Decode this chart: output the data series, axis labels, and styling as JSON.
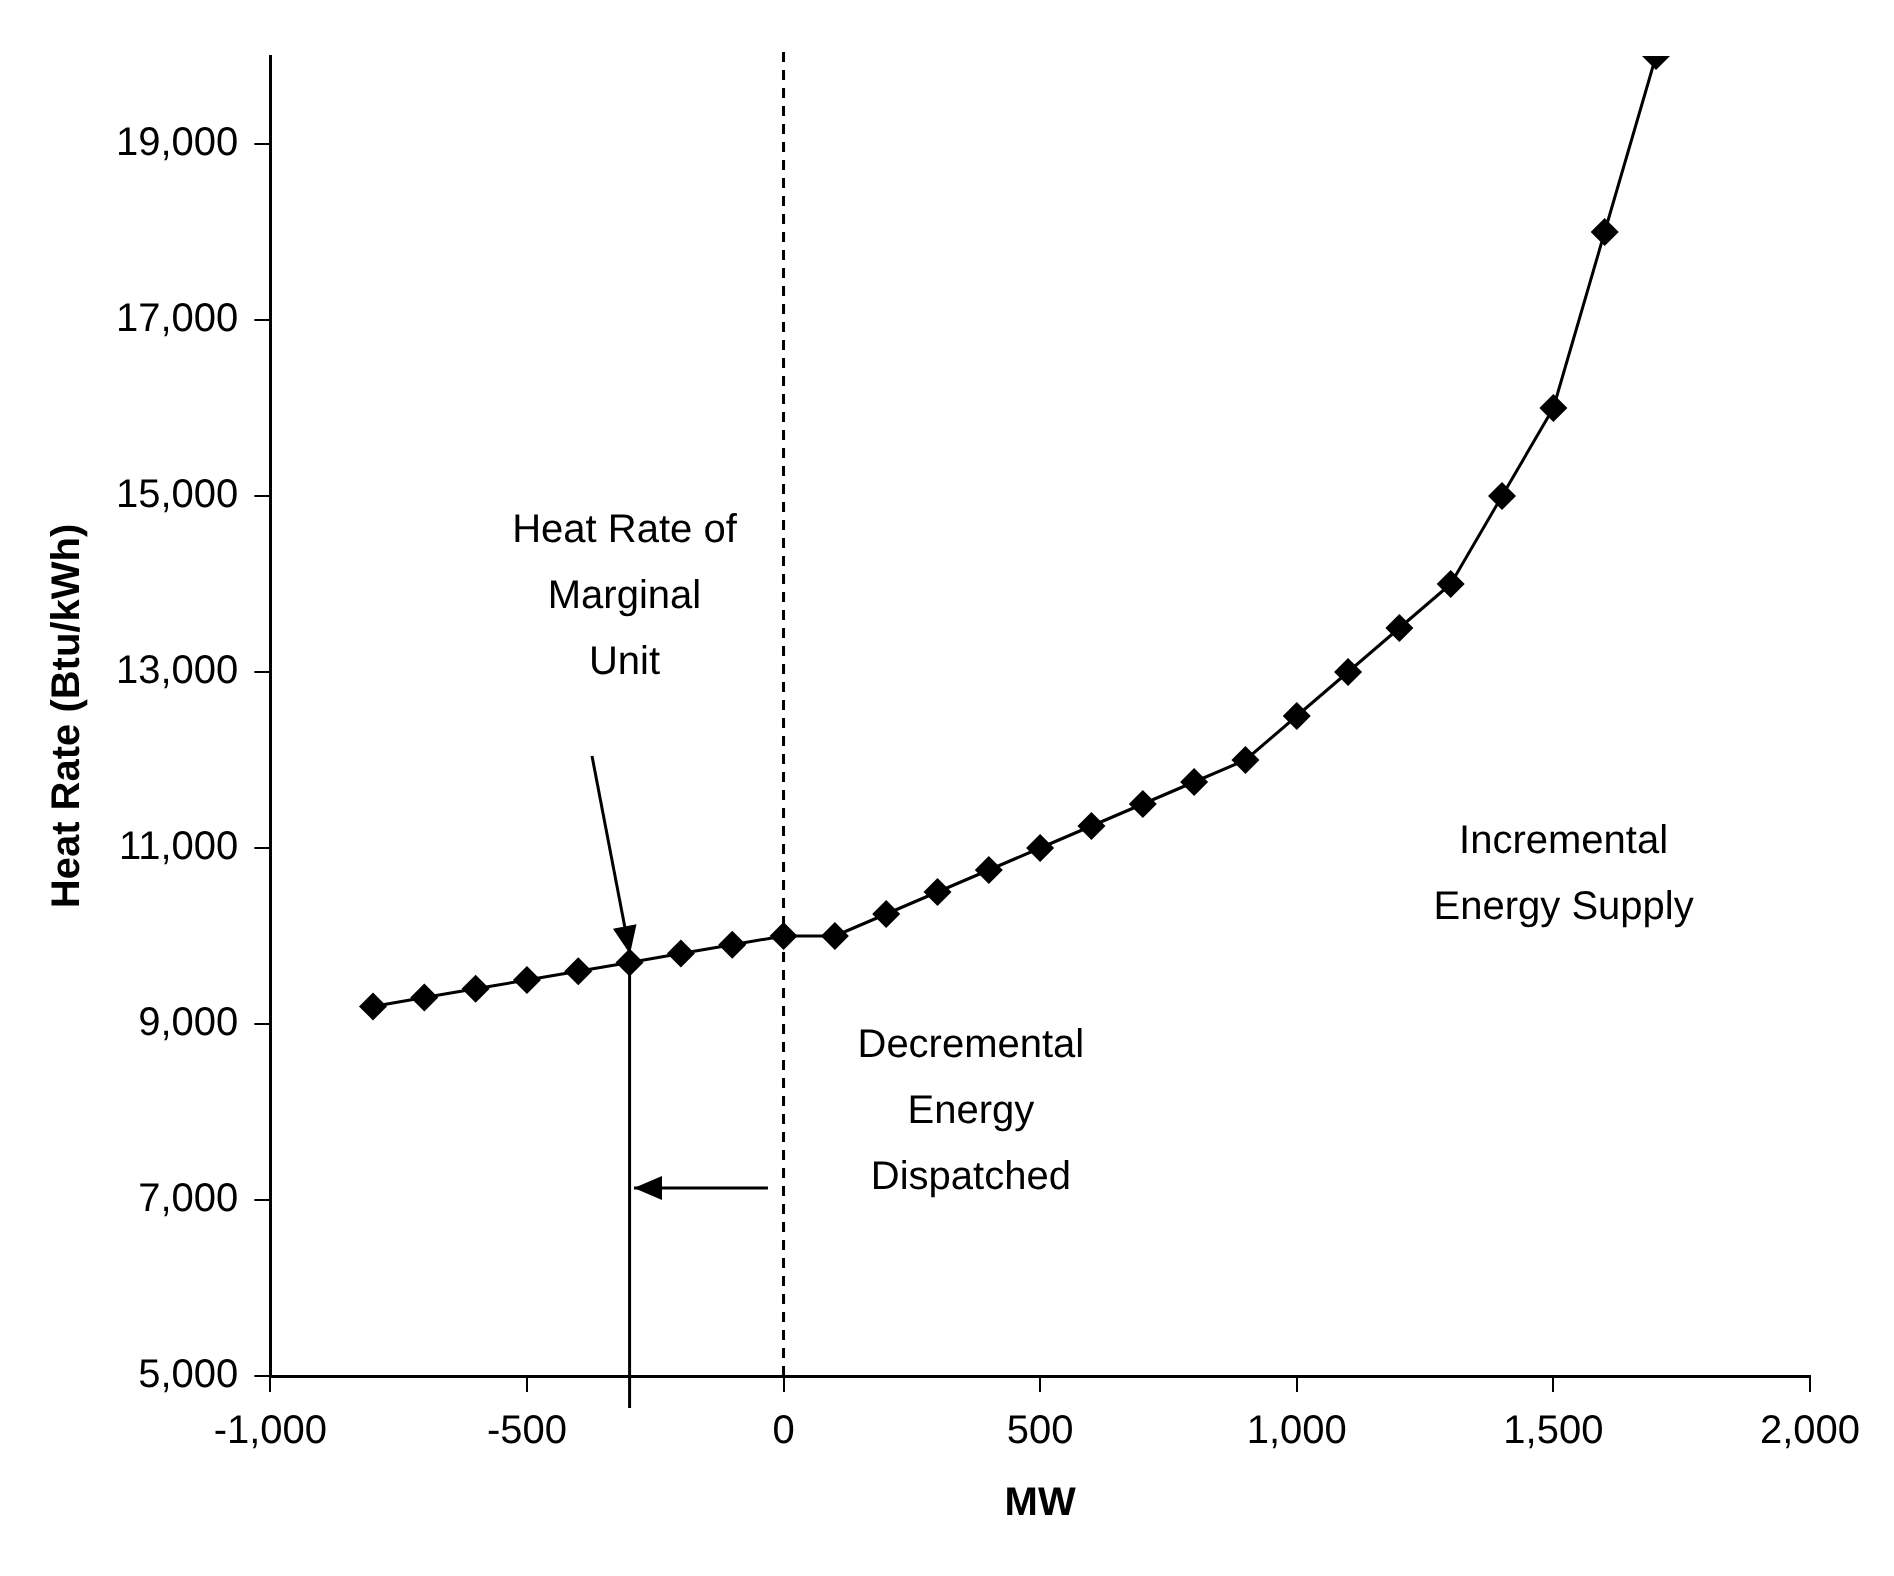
{
  "chart_data": {
    "type": "line",
    "xlabel": "MW",
    "ylabel": "Heat Rate (Btu/kWh)",
    "x": [
      -800,
      -700,
      -600,
      -500,
      -400,
      -300,
      -200,
      -100,
      0,
      100,
      200,
      300,
      400,
      500,
      600,
      700,
      800,
      900,
      1000,
      1100,
      1200,
      1300,
      1400,
      1500,
      1600,
      1700
    ],
    "series": [
      {
        "color": "#000000",
        "values": [
          9200,
          9300,
          9400,
          9500,
          9600,
          9700,
          9800,
          9900,
          10000,
          10000,
          10250,
          10500,
          10750,
          11000,
          11250,
          11500,
          11750,
          12000,
          12500,
          13000,
          13500,
          14000,
          15000,
          16000,
          18000,
          20000
        ]
      }
    ],
    "xlim": [
      -1000,
      2000
    ],
    "xticks": [
      {
        "value": -1000,
        "label": "-1,000"
      },
      {
        "value": -500,
        "label": "-500"
      },
      0,
      {
        "value": 500,
        "label": "500"
      },
      {
        "value": 1000,
        "label": "1,000"
      },
      {
        "value": 1500,
        "label": "1,500"
      },
      {
        "value": 2000,
        "label": "2,000"
      }
    ],
    "ylim": [
      5000,
      20000
    ],
    "yticks": [
      {
        "value": 5000,
        "label": "5,000"
      },
      {
        "value": 7000,
        "label": "7,000"
      },
      {
        "value": 9000,
        "label": "9,000"
      },
      {
        "value": 11000,
        "label": "11,000"
      },
      {
        "value": 13000,
        "label": "13,000"
      },
      {
        "value": 15000,
        "label": "15,000"
      },
      {
        "value": 17000,
        "label": "17,000"
      },
      {
        "value": 19000,
        "label": "19,000"
      }
    ],
    "ref_lines": [
      {
        "axis": "x",
        "value": 0,
        "line_style": "dashed"
      },
      {
        "axis": "x",
        "value": -300,
        "line_style": "solid"
      }
    ],
    "annotations": [
      "Heat Rate of\nMarginal\nUnit",
      "Decremental\nEnergy\nDispatched",
      "Incremental\nEnergy Supply"
    ],
    "marker": "diamond",
    "line_style": "solid",
    "grid": false,
    "legend": false
  }
}
